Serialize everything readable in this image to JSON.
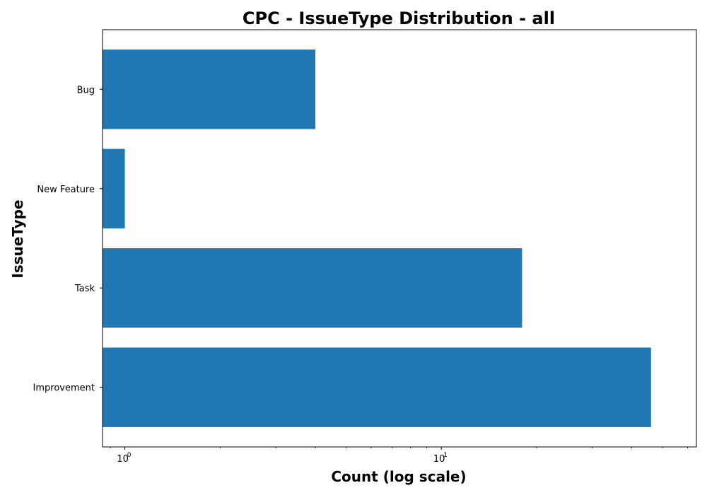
{
  "chart_data": {
    "type": "bar",
    "orientation": "horizontal",
    "title": "CPC - IssueType Distribution - all",
    "xlabel": "Count (log scale)",
    "ylabel": "IssueType",
    "xscale": "log",
    "xlim": [
      0.85,
      64
    ],
    "categories": [
      "Bug",
      "New Feature",
      "Task",
      "Improvement"
    ],
    "values": [
      4,
      1,
      18,
      46
    ],
    "x_ticks": [
      {
        "value": 1,
        "base": "10",
        "exp": "0"
      },
      {
        "value": 10,
        "base": "10",
        "exp": "1"
      }
    ],
    "grid": false,
    "legend": "none",
    "bar_color": "#1f77b4"
  }
}
